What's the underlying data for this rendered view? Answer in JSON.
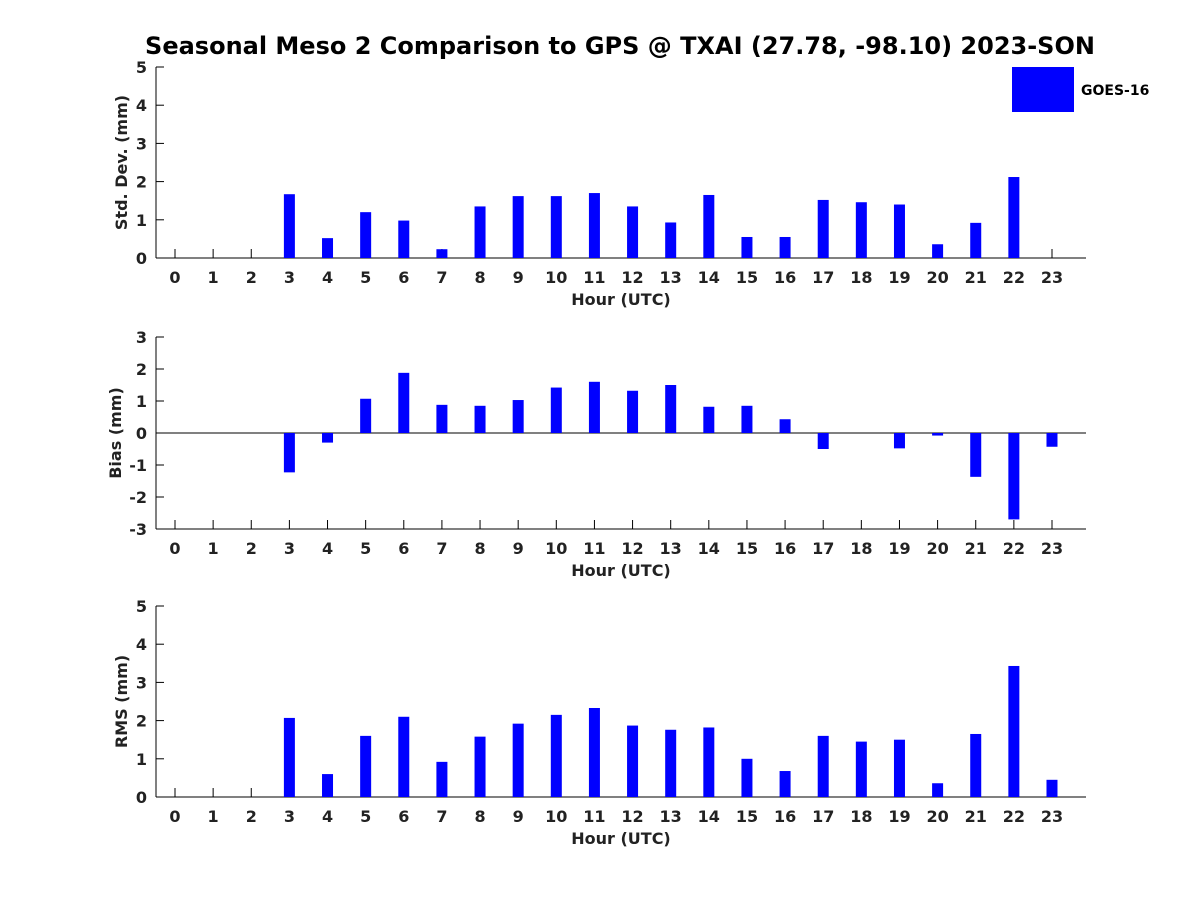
{
  "chart_data": {
    "type": "bar",
    "title": "Seasonal Meso 2 Comparison to GPS @ TXAI (27.78, -98.10) 2023-SON",
    "legend": {
      "placement": "top-right",
      "entries": [
        "GOES-16"
      ]
    },
    "colors": {
      "bar": "#0000ff"
    },
    "categories": [
      "0",
      "1",
      "2",
      "3",
      "4",
      "5",
      "6",
      "7",
      "8",
      "9",
      "10",
      "11",
      "12",
      "13",
      "14",
      "15",
      "16",
      "17",
      "18",
      "19",
      "20",
      "21",
      "22",
      "23"
    ],
    "panels": [
      {
        "ylabel": "Std. Dev. (mm)",
        "xlabel": "Hour (UTC)",
        "ylim": [
          0,
          5
        ],
        "yticks": [
          0,
          1,
          2,
          3,
          4,
          5
        ],
        "series": [
          {
            "name": "GOES-16",
            "values": [
              null,
              null,
              null,
              1.67,
              0.52,
              1.2,
              0.98,
              0.23,
              1.35,
              1.62,
              1.62,
              1.7,
              1.35,
              0.93,
              1.65,
              0.55,
              0.55,
              1.52,
              1.46,
              1.4,
              0.36,
              0.92,
              2.12,
              null
            ]
          }
        ]
      },
      {
        "ylabel": "Bias (mm)",
        "xlabel": "Hour (UTC)",
        "ylim": [
          -3,
          3
        ],
        "yticks": [
          -3,
          -2,
          -1,
          0,
          1,
          2,
          3
        ],
        "series": [
          {
            "name": "GOES-16",
            "values": [
              null,
              null,
              null,
              -1.23,
              -0.3,
              1.07,
              1.88,
              0.88,
              0.85,
              1.03,
              1.42,
              1.6,
              1.32,
              1.5,
              0.82,
              0.85,
              0.43,
              -0.5,
              null,
              -0.48,
              -0.08,
              -1.37,
              -2.7,
              -0.43
            ]
          }
        ]
      },
      {
        "ylabel": "RMS (mm)",
        "xlabel": "Hour (UTC)",
        "ylim": [
          0,
          5
        ],
        "yticks": [
          0,
          1,
          2,
          3,
          4,
          5
        ],
        "series": [
          {
            "name": "GOES-16",
            "values": [
              null,
              null,
              null,
              2.07,
              0.6,
              1.6,
              2.1,
              0.92,
              1.58,
              1.92,
              2.15,
              2.33,
              1.87,
              1.76,
              1.82,
              1.0,
              0.68,
              1.6,
              1.45,
              1.5,
              0.36,
              1.65,
              3.43,
              0.45
            ]
          }
        ]
      }
    ]
  }
}
